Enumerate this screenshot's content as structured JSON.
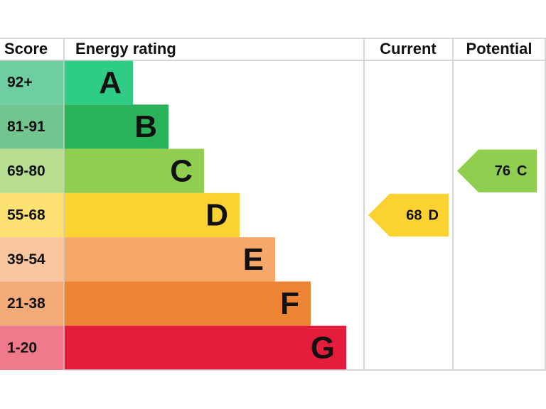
{
  "chart_data": {
    "type": "epc",
    "headers": [
      "Score",
      "Energy rating",
      "Current",
      "Potential"
    ],
    "bands": [
      {
        "score": "92+",
        "letter": "A",
        "color": "#2ecc85",
        "score_color": "#6fcda2"
      },
      {
        "score": "81-91",
        "letter": "B",
        "color": "#2bb35b",
        "score_color": "#72c58f"
      },
      {
        "score": "69-80",
        "letter": "C",
        "color": "#8fce4f",
        "score_color": "#b7de90"
      },
      {
        "score": "55-68",
        "letter": "D",
        "color": "#fcd132",
        "score_color": "#fde273"
      },
      {
        "score": "39-54",
        "letter": "E",
        "color": "#f6a86a",
        "score_color": "#f9c6a0"
      },
      {
        "score": "21-38",
        "letter": "F",
        "color": "#ec8433",
        "score_color": "#f2aa78"
      },
      {
        "score": "1-20",
        "letter": "G",
        "color": "#e31d3b",
        "score_color": "#ee7a8c"
      }
    ],
    "current": {
      "value": 68,
      "rating": "D"
    },
    "potential": {
      "value": 76,
      "rating": "C"
    }
  }
}
